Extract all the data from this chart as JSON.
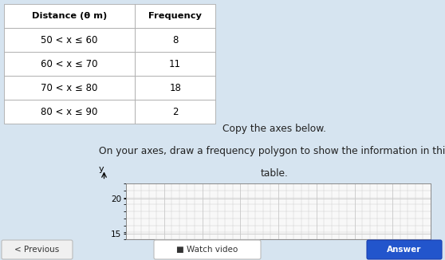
{
  "title_line1": "Copy the axes below.",
  "title_line2": "On your axes, draw a frequency polygon to show the information in this",
  "title_line3": "table.",
  "table_headers": [
    "Distance (θ m)",
    "Frequency"
  ],
  "table_rows": [
    [
      "50 < x ≤ 60",
      "8"
    ],
    [
      "60 < x ≤ 70",
      "11"
    ],
    [
      "70 < x ≤ 80",
      "18"
    ],
    [
      "80 < x ≤ 90",
      "2"
    ]
  ],
  "axes_yticks": [
    15,
    20
  ],
  "axes_ylim": [
    14.2,
    21.8
  ],
  "bg_color": "#d6e4f0",
  "axes_area_bg": "#f8f8f8",
  "grid_color": "#c8c8c8",
  "table_line_color": "#aaaaaa",
  "text_color": "#222222",
  "prev_bg": "#f0f0f0",
  "watch_bg": "#ffffff",
  "answer_bg": "#2255cc"
}
